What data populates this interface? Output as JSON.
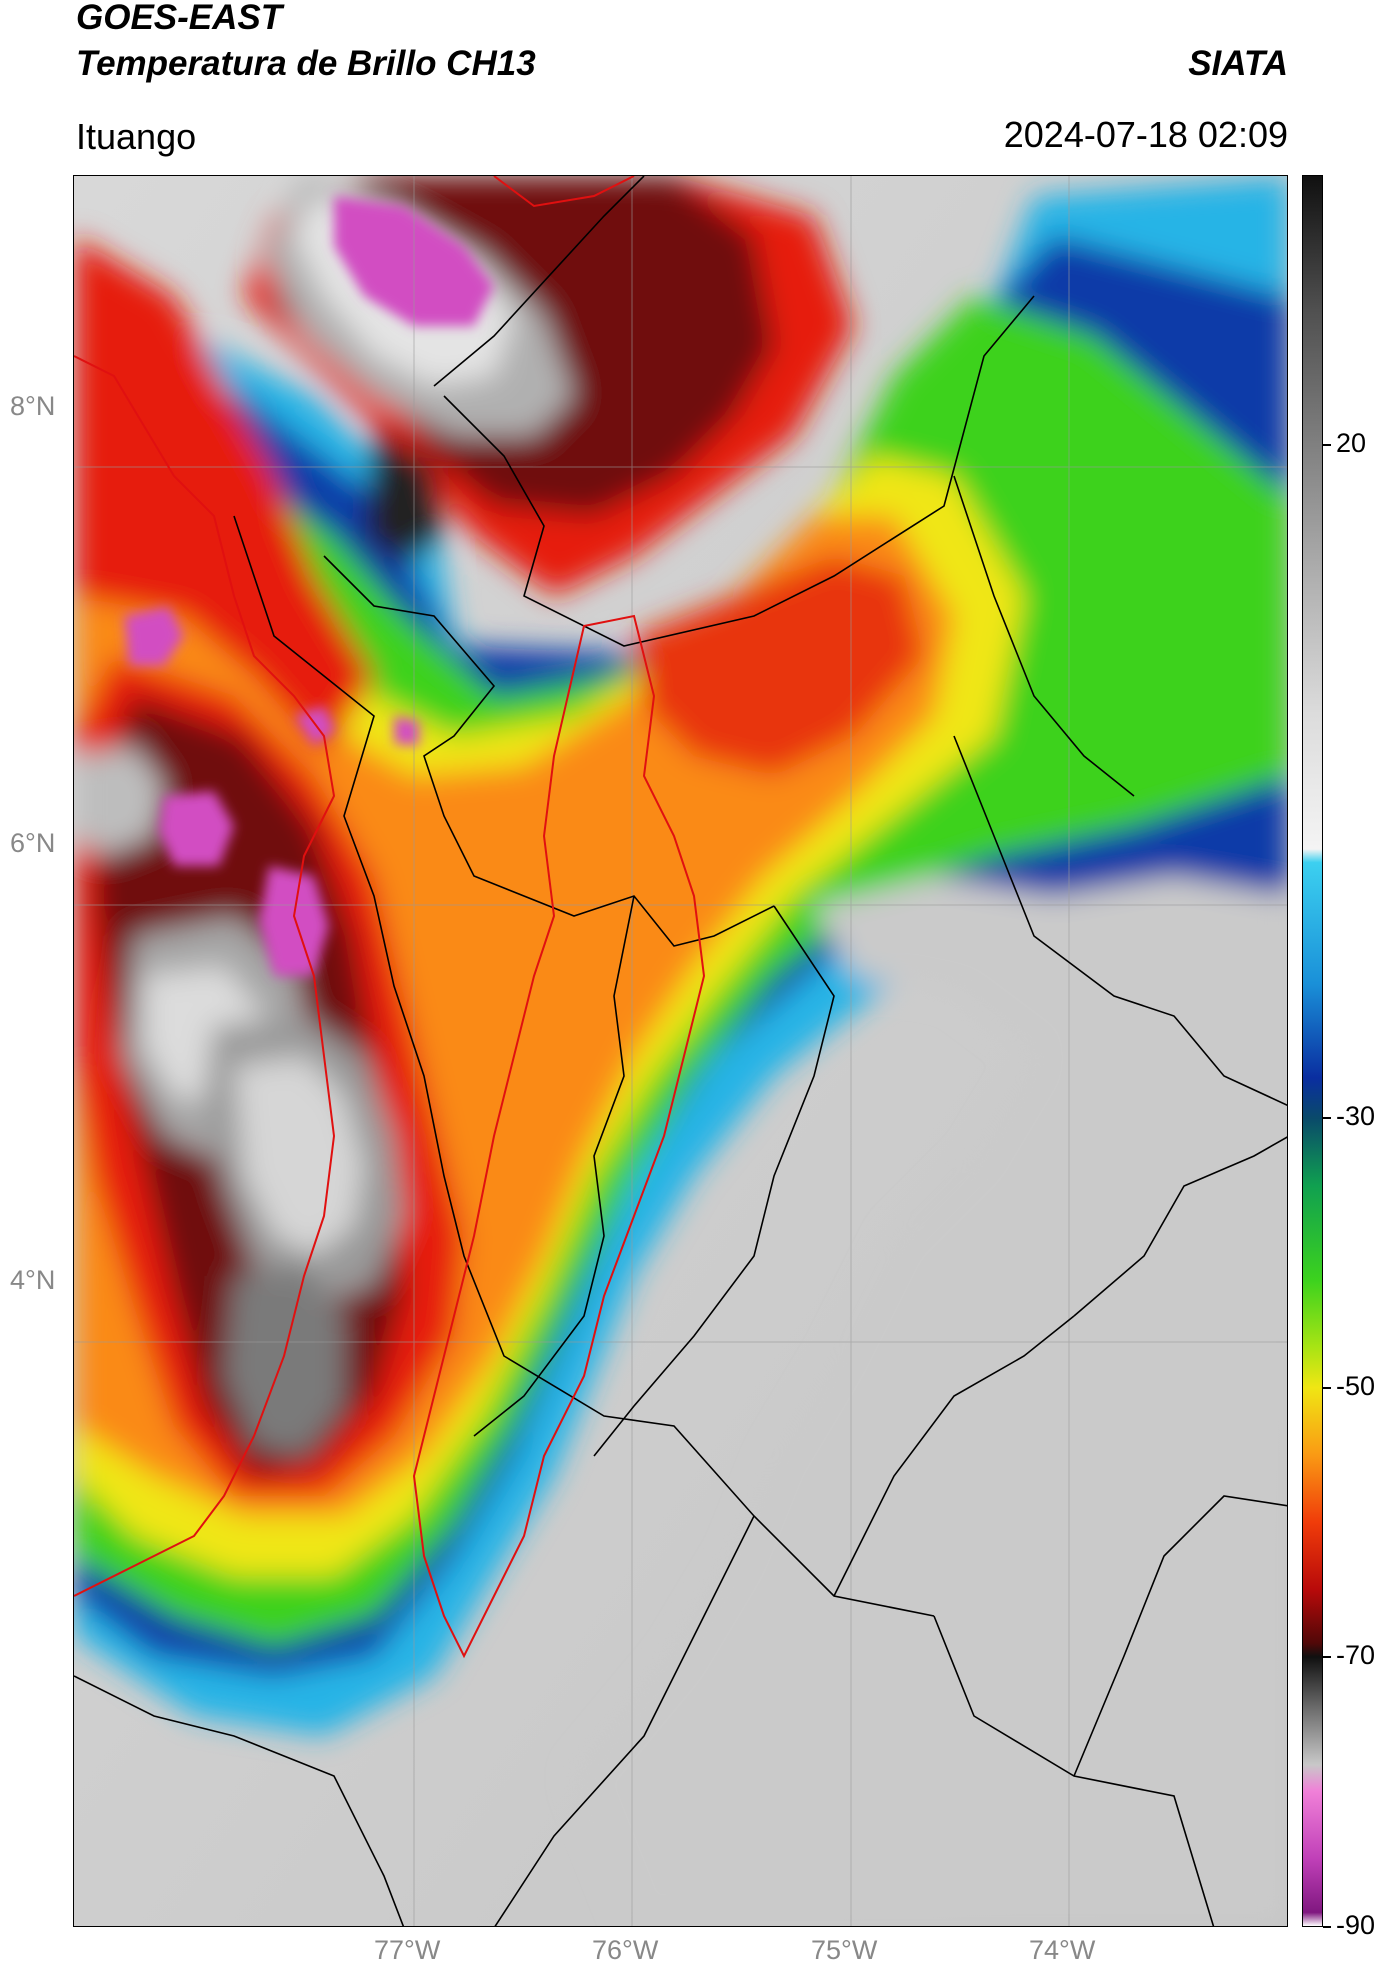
{
  "header": {
    "satellite": "GOES-EAST",
    "product": "Temperatura de Brillo CH13",
    "organization": "SIATA",
    "location": "Ituango",
    "datetime": "2024-07-18 02:09"
  },
  "map": {
    "lat_labels": [
      "8°N",
      "6°N",
      "4°N"
    ],
    "lon_labels": [
      "77°W",
      "76°W",
      "75°W",
      "74°W"
    ]
  },
  "colorbar": {
    "tick_labels": [
      "20",
      "-30",
      "-50",
      "-70",
      "-90"
    ],
    "tick_values": [
      20,
      -30,
      -50,
      -70,
      -90
    ],
    "range": [
      -90,
      40
    ]
  },
  "colors": {
    "border_regions": "#000000",
    "border_highlight": "#e01010"
  }
}
